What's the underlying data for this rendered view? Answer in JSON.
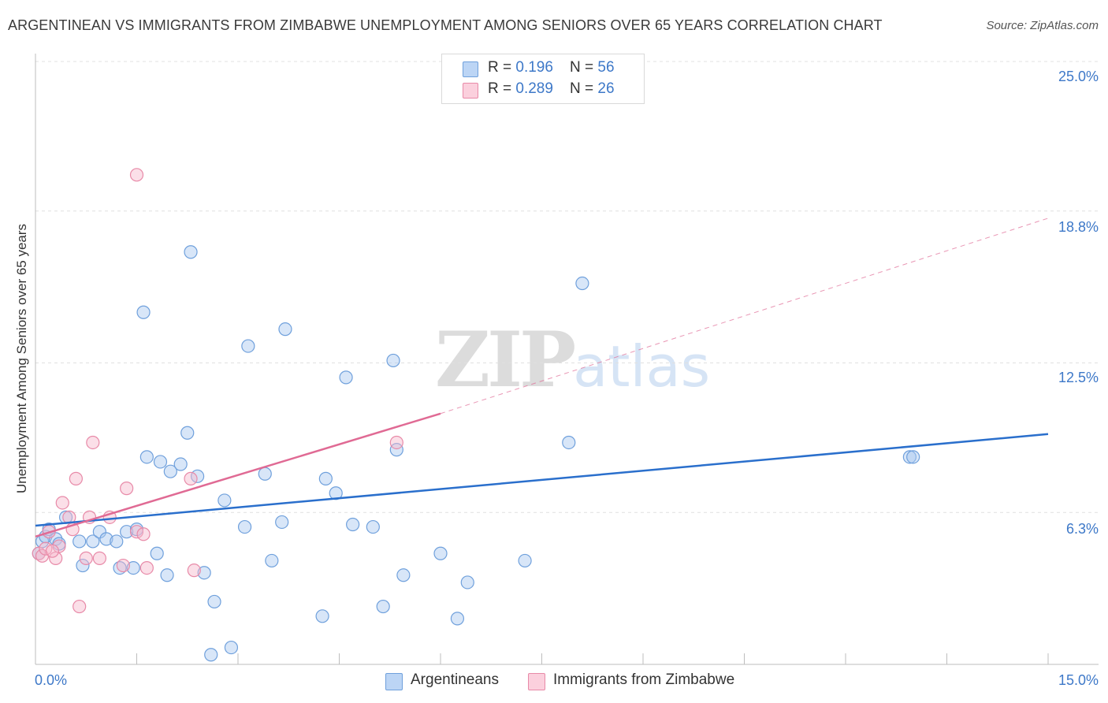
{
  "title": "ARGENTINEAN VS IMMIGRANTS FROM ZIMBABWE UNEMPLOYMENT AMONG SENIORS OVER 65 YEARS CORRELATION CHART",
  "source": "Source: ZipAtlas.com",
  "watermark": {
    "zip": "ZIP",
    "atlas": "atlas"
  },
  "legend": {
    "series1": {
      "r_label": "R = ",
      "r_value": "0.196",
      "n_label": "N = ",
      "n_value": "56",
      "color": "#a8c8f0"
    },
    "series2": {
      "r_label": "R = ",
      "r_value": "0.289",
      "n_label": "N = ",
      "n_value": "26",
      "color": "#f7b8cc"
    }
  },
  "bottom_legend": {
    "series1": "Argentineans",
    "series2": "Immigrants from Zimbabwe"
  },
  "chart_data": {
    "type": "scatter",
    "title": "ARGENTINEAN VS IMMIGRANTS FROM ZIMBABWE UNEMPLOYMENT AMONG SENIORS OVER 65 YEARS CORRELATION CHART",
    "xlabel": "",
    "ylabel": "Unemployment Among Seniors over 65 years",
    "xlim": [
      0,
      15
    ],
    "ylim": [
      0,
      25
    ],
    "x_tick_labels": [
      "0.0%",
      "15.0%"
    ],
    "y_tick_labels": [
      "25.0%",
      "18.8%",
      "12.5%",
      "6.3%"
    ],
    "y_ticks": [
      25.0,
      18.8,
      12.5,
      6.3
    ],
    "grid": true,
    "legend_position": "top-center",
    "series": [
      {
        "name": "Argentineans",
        "color": "#a8c8f0",
        "stroke": "#6fa0dc",
        "trend": {
          "x": [
            0,
            15
          ],
          "y": [
            5.75,
            9.55
          ],
          "color": "#2a6fcc"
        },
        "points": [
          [
            0.05,
            4.6
          ],
          [
            0.1,
            5.1
          ],
          [
            0.15,
            5.3
          ],
          [
            0.2,
            5.6
          ],
          [
            0.3,
            5.2
          ],
          [
            0.35,
            5.0
          ],
          [
            0.45,
            6.1
          ],
          [
            0.65,
            5.1
          ],
          [
            0.7,
            4.1
          ],
          [
            0.85,
            5.1
          ],
          [
            0.95,
            5.5
          ],
          [
            1.05,
            5.2
          ],
          [
            1.2,
            5.1
          ],
          [
            1.25,
            4.0
          ],
          [
            1.35,
            5.5
          ],
          [
            1.45,
            4.0
          ],
          [
            1.5,
            5.6
          ],
          [
            1.6,
            14.6
          ],
          [
            1.65,
            8.6
          ],
          [
            1.8,
            4.6
          ],
          [
            1.85,
            8.4
          ],
          [
            1.95,
            3.7
          ],
          [
            2.0,
            8.0
          ],
          [
            2.15,
            8.3
          ],
          [
            2.25,
            9.6
          ],
          [
            2.3,
            17.1
          ],
          [
            2.4,
            7.8
          ],
          [
            2.5,
            3.8
          ],
          [
            2.6,
            0.4
          ],
          [
            2.65,
            2.6
          ],
          [
            2.8,
            6.8
          ],
          [
            2.9,
            0.7
          ],
          [
            3.1,
            5.7
          ],
          [
            3.15,
            13.2
          ],
          [
            3.4,
            7.9
          ],
          [
            3.5,
            4.3
          ],
          [
            3.65,
            5.9
          ],
          [
            3.7,
            13.9
          ],
          [
            4.25,
            2.0
          ],
          [
            4.3,
            7.7
          ],
          [
            4.45,
            7.1
          ],
          [
            4.6,
            11.9
          ],
          [
            4.7,
            5.8
          ],
          [
            5.0,
            5.7
          ],
          [
            5.15,
            2.4
          ],
          [
            5.3,
            12.6
          ],
          [
            5.35,
            8.9
          ],
          [
            5.45,
            3.7
          ],
          [
            6.0,
            4.6
          ],
          [
            6.25,
            1.9
          ],
          [
            6.4,
            3.4
          ],
          [
            7.25,
            4.3
          ],
          [
            7.9,
            9.2
          ],
          [
            8.1,
            15.8
          ],
          [
            12.95,
            8.6
          ],
          [
            13.0,
            8.6
          ]
        ]
      },
      {
        "name": "Immigrants from Zimbabwe",
        "color": "#f7b8cc",
        "stroke": "#e88aa8",
        "trend": {
          "x": [
            0,
            6.0
          ],
          "y": [
            5.3,
            10.4
          ],
          "color": "#e06a94",
          "extended_to": [
            15,
            18.5
          ]
        },
        "points": [
          [
            0.05,
            4.6
          ],
          [
            0.1,
            4.5
          ],
          [
            0.15,
            4.8
          ],
          [
            0.2,
            5.5
          ],
          [
            0.3,
            4.4
          ],
          [
            0.35,
            4.9
          ],
          [
            0.4,
            6.7
          ],
          [
            0.5,
            6.1
          ],
          [
            0.55,
            5.6
          ],
          [
            0.6,
            7.7
          ],
          [
            0.65,
            2.4
          ],
          [
            0.75,
            4.4
          ],
          [
            0.8,
            6.1
          ],
          [
            0.85,
            9.2
          ],
          [
            0.95,
            4.4
          ],
          [
            1.1,
            6.1
          ],
          [
            1.3,
            4.1
          ],
          [
            1.35,
            7.3
          ],
          [
            1.5,
            5.5
          ],
          [
            1.5,
            20.3
          ],
          [
            1.65,
            4.0
          ],
          [
            2.3,
            7.7
          ],
          [
            2.35,
            3.9
          ],
          [
            5.35,
            9.2
          ],
          [
            0.25,
            4.7
          ],
          [
            1.6,
            5.4
          ]
        ]
      }
    ]
  }
}
